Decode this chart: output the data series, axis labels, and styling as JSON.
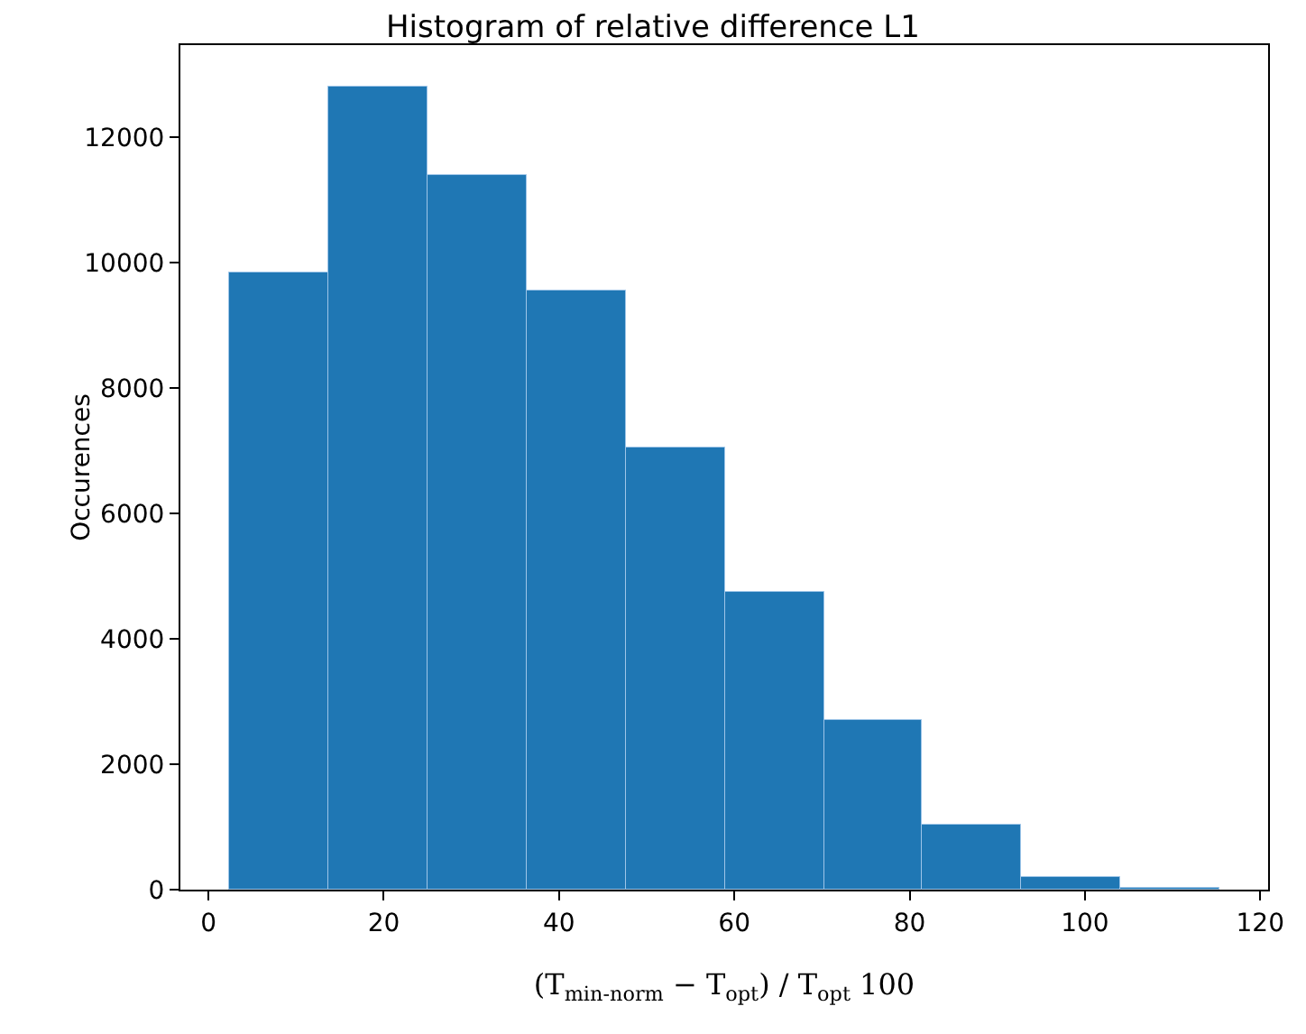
{
  "chart_data": {
    "type": "histogram",
    "title": "Histogram of relative difference L1",
    "xlabel": "(T$_{min-norm}$ − T$_{opt}$) / T$_{opt}$ 100",
    "ylabel": "Occurences",
    "bins": [
      2.4,
      13.7,
      25.0,
      36.3,
      47.6,
      58.9,
      70.2,
      81.4,
      92.7,
      104.0,
      115.3
    ],
    "values": [
      9850,
      12800,
      11400,
      9550,
      7050,
      4750,
      2700,
      1050,
      200,
      30
    ],
    "color": "#1f77b4",
    "xlim": [
      -3.2,
      120.9
    ],
    "xticks": [
      0,
      20,
      40,
      60,
      80,
      100,
      120
    ],
    "ylim": [
      0,
      13470
    ],
    "yticks": [
      0,
      2000,
      4000,
      6000,
      8000,
      10000,
      12000
    ],
    "grid": false,
    "legend": false
  }
}
